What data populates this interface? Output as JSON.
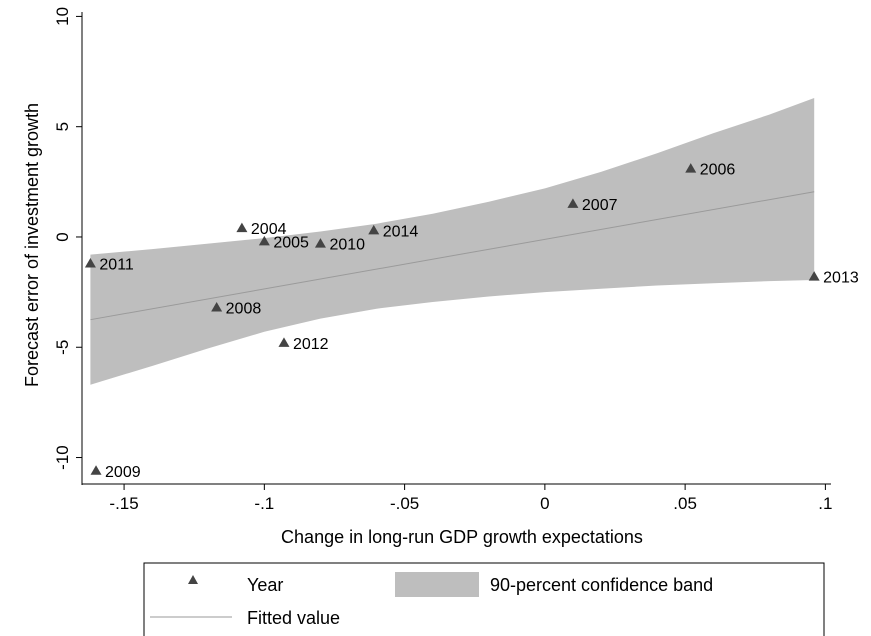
{
  "chart_data": {
    "type": "scatter",
    "title": "",
    "xlabel": "Change in long-run GDP growth expectations",
    "ylabel": "Forecast error of investment growth",
    "xlim": [
      -0.165,
      0.102
    ],
    "ylim": [
      -11.2,
      10.2
    ],
    "x_ticks": [
      -0.15,
      -0.1,
      -0.05,
      0,
      0.05,
      0.1
    ],
    "x_tick_labels": [
      "-.15",
      "-.1",
      "-.05",
      "0",
      ".05",
      ".1"
    ],
    "y_ticks": [
      -10,
      -5,
      0,
      5,
      10
    ],
    "y_tick_labels": [
      "-10",
      "-5",
      "0",
      "5",
      "10"
    ],
    "grid": false,
    "legend_position": "bottom",
    "points": [
      {
        "label": "2004",
        "x": -0.108,
        "y": 0.4
      },
      {
        "label": "2005",
        "x": -0.1,
        "y": -0.2
      },
      {
        "label": "2006",
        "x": 0.052,
        "y": 3.1
      },
      {
        "label": "2007",
        "x": 0.01,
        "y": 1.5
      },
      {
        "label": "2008",
        "x": -0.117,
        "y": -3.2
      },
      {
        "label": "2009",
        "x": -0.16,
        "y": -10.6
      },
      {
        "label": "2010",
        "x": -0.08,
        "y": -0.3
      },
      {
        "label": "2011",
        "x": -0.162,
        "y": -1.2
      },
      {
        "label": "2012",
        "x": -0.093,
        "y": -4.8
      },
      {
        "label": "2013",
        "x": 0.096,
        "y": -1.8
      },
      {
        "label": "2014",
        "x": -0.061,
        "y": 0.3
      }
    ],
    "fit_line": {
      "x": [
        -0.162,
        0.096
      ],
      "y": [
        -3.75,
        2.05
      ]
    },
    "confidence_band": {
      "x": [
        -0.162,
        -0.14,
        -0.12,
        -0.1,
        -0.08,
        -0.06,
        -0.04,
        -0.02,
        0,
        0.02,
        0.04,
        0.06,
        0.08,
        0.096
      ],
      "upper": [
        -0.8,
        -0.55,
        -0.3,
        -0.05,
        0.25,
        0.6,
        1.05,
        1.6,
        2.2,
        2.95,
        3.8,
        4.7,
        5.55,
        6.3
      ],
      "lower": [
        -6.7,
        -5.85,
        -5.05,
        -4.3,
        -3.7,
        -3.25,
        -2.95,
        -2.7,
        -2.5,
        -2.35,
        -2.2,
        -2.1,
        -2.0,
        -1.95
      ]
    },
    "legend": [
      {
        "name": "Year",
        "symbol": "marker"
      },
      {
        "name": "90-percent confidence band",
        "symbol": "band"
      },
      {
        "name": "Fitted value",
        "symbol": "line"
      }
    ],
    "colors": {
      "band": "#bebebe",
      "line": "#9a9a9a",
      "marker": "#444444"
    }
  }
}
